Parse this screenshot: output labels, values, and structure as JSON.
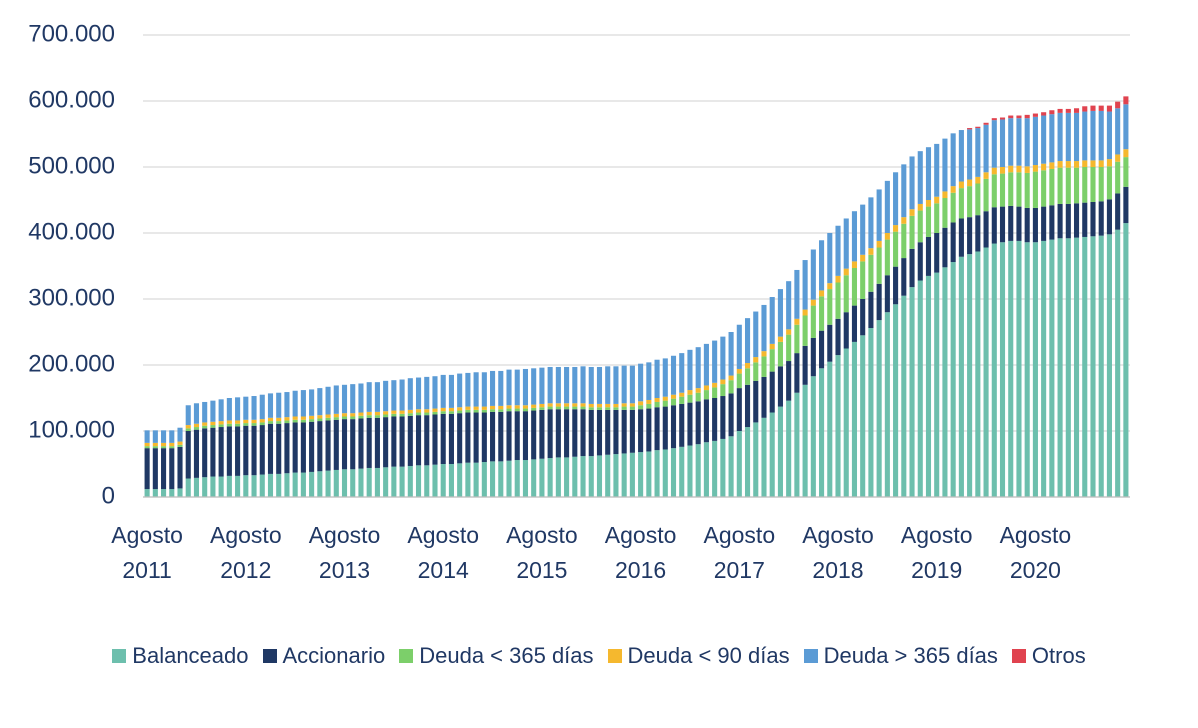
{
  "chart_data": {
    "type": "stacked_bar",
    "categories": [
      "Agosto 2011",
      null,
      null,
      null,
      null,
      null,
      null,
      null,
      null,
      null,
      null,
      null,
      "Agosto 2012",
      null,
      null,
      null,
      null,
      null,
      null,
      null,
      null,
      null,
      null,
      null,
      "Agosto 2013",
      null,
      null,
      null,
      null,
      null,
      null,
      null,
      null,
      null,
      null,
      null,
      "Agosto 2014",
      null,
      null,
      null,
      null,
      null,
      null,
      null,
      null,
      null,
      null,
      null,
      "Agosto 2015",
      null,
      null,
      null,
      null,
      null,
      null,
      null,
      null,
      null,
      null,
      null,
      "Agosto 2016",
      null,
      null,
      null,
      null,
      null,
      null,
      null,
      null,
      null,
      null,
      null,
      "Agosto 2017",
      null,
      null,
      null,
      null,
      null,
      null,
      null,
      null,
      null,
      null,
      null,
      "Agosto 2018",
      null,
      null,
      null,
      null,
      null,
      null,
      null,
      null,
      null,
      null,
      null,
      "Agosto 2019",
      null,
      null,
      null,
      null,
      null,
      null,
      null,
      null,
      null,
      null,
      null,
      "Agosto 2020",
      null,
      null,
      null,
      null,
      null,
      null,
      null,
      null,
      null,
      null,
      null
    ],
    "series": [
      {
        "name": "Balanceado",
        "color": "#6dbfad",
        "values": [
          12000,
          12000,
          12000,
          12000,
          13000,
          28000,
          29000,
          30000,
          31000,
          31000,
          32000,
          32000,
          33000,
          33000,
          34000,
          35000,
          35000,
          36000,
          37000,
          37000,
          38000,
          39000,
          40000,
          41000,
          42000,
          42000,
          43000,
          44000,
          44000,
          45000,
          46000,
          46000,
          47000,
          48000,
          48000,
          49000,
          50000,
          50000,
          51000,
          52000,
          52000,
          53000,
          54000,
          54000,
          55000,
          56000,
          56000,
          57000,
          58000,
          59000,
          60000,
          60000,
          61000,
          62000,
          62000,
          63000,
          64000,
          65000,
          66000,
          67000,
          68000,
          69000,
          71000,
          72000,
          74000,
          76000,
          78000,
          80000,
          83000,
          85000,
          88000,
          92000,
          100000,
          106000,
          113000,
          120000,
          128000,
          137000,
          146000,
          158000,
          170000,
          183000,
          195000,
          205000,
          215000,
          225000,
          235000,
          245000,
          256000,
          268000,
          280000,
          292000,
          305000,
          318000,
          328000,
          335000,
          340000,
          348000,
          356000,
          364000,
          368000,
          372000,
          378000,
          384000,
          386000,
          388000,
          388000,
          386000,
          386000,
          388000,
          390000,
          392000,
          392000,
          393000,
          394000,
          395000,
          396000,
          398000,
          405000,
          415000
        ]
      },
      {
        "name": "Accionario",
        "color": "#1f3864",
        "values": [
          62000,
          62000,
          62000,
          62000,
          63000,
          72000,
          73000,
          74000,
          74000,
          75000,
          75000,
          75000,
          75000,
          75000,
          75000,
          76000,
          76000,
          76000,
          76000,
          76000,
          76000,
          76000,
          76000,
          76000,
          76000,
          76000,
          76000,
          76000,
          76000,
          76000,
          76000,
          76000,
          76000,
          76000,
          76000,
          76000,
          76000,
          76000,
          76000,
          76000,
          76000,
          75000,
          75000,
          75000,
          75000,
          74000,
          74000,
          74000,
          74000,
          74000,
          73000,
          73000,
          72000,
          71000,
          70000,
          69000,
          68000,
          67000,
          66000,
          65000,
          65000,
          65000,
          65000,
          65000,
          65000,
          65000,
          65000,
          65000,
          65000,
          65000,
          65000,
          65000,
          65000,
          64000,
          63000,
          62000,
          62000,
          61000,
          60000,
          60000,
          59000,
          58000,
          57000,
          56000,
          55000,
          55000,
          55000,
          55000,
          55000,
          55000,
          56000,
          57000,
          57000,
          58000,
          58000,
          59000,
          60000,
          60000,
          60000,
          58000,
          56000,
          55000,
          55000,
          55000,
          54000,
          53000,
          52000,
          52000,
          52000,
          52000,
          52000,
          52000,
          52000,
          52000,
          52000,
          52000,
          52000,
          53000,
          55000,
          55000
        ]
      },
      {
        "name": "Deuda < 365 días",
        "color": "#7ccf6a",
        "values": [
          3000,
          3000,
          3000,
          3000,
          3000,
          4000,
          4000,
          4000,
          4000,
          4000,
          4000,
          4000,
          4000,
          4000,
          4000,
          4000,
          4000,
          4000,
          4000,
          4000,
          4000,
          4000,
          4000,
          4000,
          4000,
          4000,
          4000,
          4000,
          4000,
          4000,
          4000,
          4000,
          4000,
          4000,
          4000,
          4000,
          4000,
          4000,
          4000,
          4000,
          4000,
          4000,
          4000,
          4000,
          4000,
          4000,
          4000,
          4000,
          4000,
          4000,
          4000,
          4000,
          4000,
          4000,
          4000,
          4000,
          4000,
          4000,
          5000,
          5000,
          6000,
          7000,
          8000,
          9000,
          10000,
          11000,
          12000,
          13000,
          14000,
          16000,
          18000,
          20000,
          22000,
          25000,
          28000,
          31000,
          34000,
          37000,
          40000,
          43000,
          46000,
          49000,
          52000,
          54000,
          55000,
          56000,
          57000,
          57000,
          56000,
          55000,
          54000,
          53000,
          52000,
          50000,
          48000,
          46000,
          45000,
          45000,
          45000,
          46000,
          47000,
          48000,
          49000,
          50000,
          50000,
          51000,
          52000,
          53000,
          55000,
          55000,
          55000,
          55000,
          55000,
          54000,
          54000,
          53000,
          52000,
          50000,
          48000,
          45000
        ]
      },
      {
        "name": "Deuda < 90 días",
        "color": "#f5b82e",
        "values": [
          5000,
          5000,
          5000,
          5000,
          5000,
          5000,
          5000,
          5000,
          5000,
          5000,
          5000,
          5000,
          5000,
          5000,
          5000,
          5000,
          5000,
          5000,
          5000,
          5000,
          5000,
          5000,
          5000,
          5000,
          5000,
          5000,
          5000,
          5000,
          5000,
          5000,
          5000,
          5000,
          5000,
          5000,
          5000,
          5000,
          5000,
          5000,
          5000,
          5000,
          5000,
          5000,
          5000,
          5000,
          5000,
          5000,
          5000,
          5000,
          5000,
          5000,
          5000,
          5000,
          5000,
          5000,
          5000,
          5000,
          5000,
          5000,
          5000,
          5000,
          6000,
          6000,
          6000,
          6000,
          6000,
          6000,
          7000,
          7000,
          7000,
          7000,
          7000,
          7000,
          7000,
          8000,
          8000,
          8000,
          8000,
          8000,
          8000,
          9000,
          9000,
          9000,
          9000,
          9000,
          10000,
          10000,
          10000,
          10000,
          10000,
          10000,
          10000,
          10000,
          10000,
          10000,
          10000,
          10000,
          10000,
          10000,
          10000,
          10000,
          10000,
          10000,
          10000,
          10000,
          10000,
          10000,
          10000,
          10000,
          10000,
          10000,
          10000,
          10000,
          10000,
          10000,
          10000,
          10000,
          10000,
          11000,
          11000,
          12000
        ]
      },
      {
        "name": "Deuda > 365 días",
        "color": "#5b9bd5",
        "values": [
          19000,
          19000,
          19000,
          19000,
          21000,
          30000,
          31000,
          31000,
          32000,
          33000,
          34000,
          35000,
          35000,
          36000,
          37000,
          37000,
          38000,
          38000,
          39000,
          40000,
          40000,
          41000,
          42000,
          43000,
          43000,
          44000,
          44000,
          45000,
          45000,
          46000,
          46000,
          47000,
          48000,
          48000,
          49000,
          49000,
          50000,
          50000,
          51000,
          51000,
          52000,
          52000,
          53000,
          53000,
          54000,
          54000,
          55000,
          55000,
          55000,
          55000,
          55000,
          55000,
          55000,
          56000,
          56000,
          56000,
          57000,
          57000,
          57000,
          57000,
          57000,
          57000,
          58000,
          58000,
          59000,
          60000,
          61000,
          62000,
          63000,
          64000,
          65000,
          66000,
          67000,
          68000,
          69000,
          70000,
          71000,
          72000,
          73000,
          74000,
          75000,
          76000,
          76000,
          76000,
          76000,
          76000,
          76000,
          76000,
          77000,
          78000,
          79000,
          80000,
          80000,
          80000,
          80000,
          80000,
          80000,
          80000,
          80000,
          78000,
          76000,
          74000,
          72000,
          72000,
          72000,
          72000,
          72000,
          73000,
          73000,
          73000,
          73000,
          73000,
          73000,
          73000,
          74000,
          75000,
          75000,
          72000,
          70000,
          68000
        ]
      },
      {
        "name": "Otros",
        "color": "#e0434f",
        "values": [
          0,
          0,
          0,
          0,
          0,
          0,
          0,
          0,
          0,
          0,
          0,
          0,
          0,
          0,
          0,
          0,
          0,
          0,
          0,
          0,
          0,
          0,
          0,
          0,
          0,
          0,
          0,
          0,
          0,
          0,
          0,
          0,
          0,
          0,
          0,
          0,
          0,
          0,
          0,
          0,
          0,
          0,
          0,
          0,
          0,
          0,
          0,
          0,
          0,
          0,
          0,
          0,
          0,
          0,
          0,
          0,
          0,
          0,
          0,
          0,
          0,
          0,
          0,
          0,
          0,
          0,
          0,
          0,
          0,
          0,
          0,
          0,
          0,
          0,
          0,
          0,
          0,
          0,
          0,
          0,
          0,
          0,
          0,
          0,
          0,
          0,
          0,
          0,
          0,
          0,
          0,
          0,
          0,
          0,
          0,
          0,
          0,
          0,
          0,
          0,
          2000,
          2000,
          3000,
          3000,
          3000,
          4000,
          4000,
          5000,
          5000,
          5000,
          6000,
          6000,
          6000,
          7000,
          8000,
          8000,
          8000,
          9000,
          10000,
          12000
        ]
      }
    ],
    "ylim": [
      0,
      700000
    ],
    "yticks": [
      0,
      {
        "value": 100000,
        "label": "100.000"
      },
      {
        "value": 200000,
        "label": "200.000"
      },
      {
        "value": 300000,
        "label": "300.000"
      },
      {
        "value": 400000,
        "label": "400.000"
      },
      {
        "value": 500000,
        "label": "500.000"
      },
      {
        "value": 600000,
        "label": "600.000"
      },
      {
        "value": 700000,
        "label": "700.000"
      }
    ],
    "grid": true,
    "legend": "bottom"
  }
}
